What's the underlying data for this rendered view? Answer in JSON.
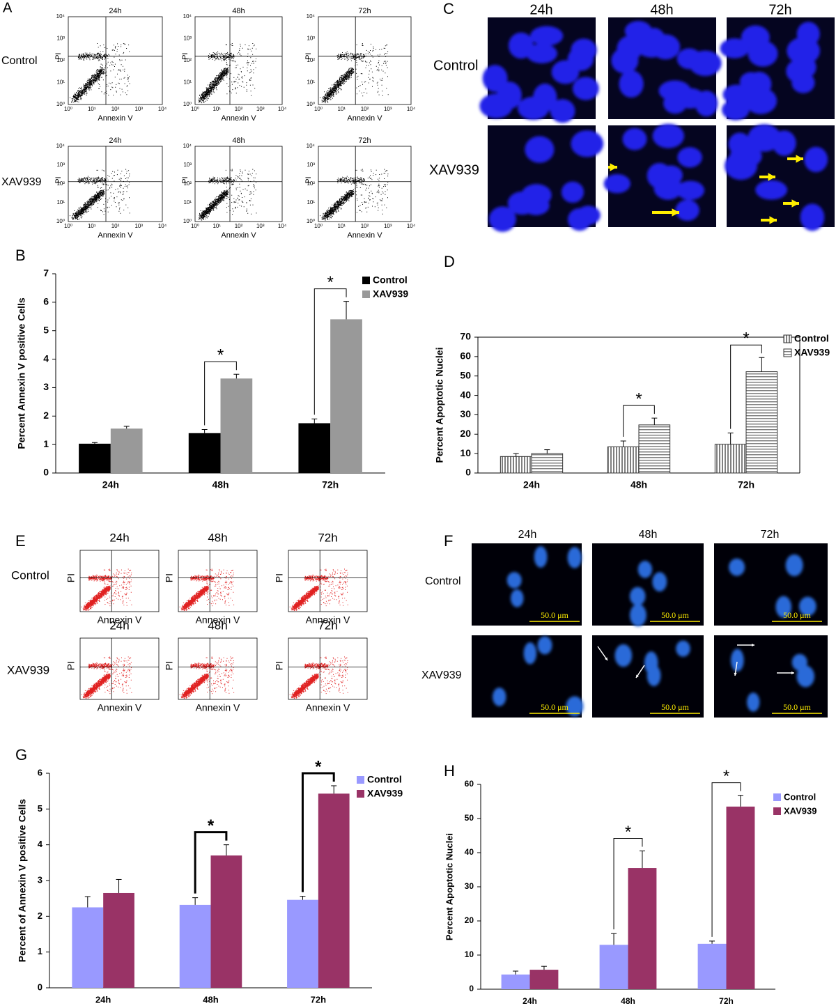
{
  "panel_a": {
    "label": "A",
    "columns": [
      "24h",
      "48h",
      "72h"
    ],
    "rows": [
      "Control",
      "XAV939"
    ],
    "x_label": "Annexin V",
    "y_label": "PI",
    "ticks": [
      "10⁰",
      "10¹",
      "10²",
      "10³",
      "10⁴"
    ]
  },
  "panel_c": {
    "label": "C",
    "columns": [
      "24h",
      "48h",
      "72h"
    ],
    "rows": [
      "Control",
      "XAV939"
    ]
  },
  "panel_e": {
    "label": "E",
    "columns": [
      "24h",
      "48h",
      "72h"
    ],
    "rows": [
      "Control",
      "XAV939"
    ],
    "x_label": "Annexin V",
    "y_label": "PI"
  },
  "panel_f": {
    "label": "F",
    "columns": [
      "24h",
      "48h",
      "72h"
    ],
    "rows": [
      "Control",
      "XAV939"
    ],
    "scale_bar": "50.0 μm"
  },
  "chart_data": [
    {
      "type": "bar",
      "panel_label": "B",
      "y_label": "Percent  Annexin V  positive  Cells",
      "categories": [
        "24h",
        "48h",
        "72h"
      ],
      "series": [
        {
          "name": "Control",
          "color": "#000000",
          "values": [
            1.03,
            1.4,
            1.75
          ],
          "errors": [
            0.04,
            0.13,
            0.15
          ]
        },
        {
          "name": "XAV939",
          "color": "#999999",
          "values": [
            1.56,
            3.32,
            5.4
          ],
          "errors": [
            0.08,
            0.15,
            0.63
          ]
        }
      ],
      "ylim": [
        0,
        7
      ],
      "yticks": [
        0,
        1,
        2,
        3,
        4,
        5,
        6,
        7
      ],
      "legend": "top-right",
      "annotations": [
        "*",
        "*"
      ]
    },
    {
      "type": "bar",
      "panel_label": "D",
      "y_label": "Percent Apoptotic Nuclei",
      "categories": [
        "24h",
        "48h",
        "72h"
      ],
      "series": [
        {
          "name": "Control",
          "color": "#808080",
          "pattern": "vertical",
          "values": [
            8.5,
            13.5,
            14.8
          ],
          "errors": [
            1.5,
            3.0,
            5.8
          ]
        },
        {
          "name": "XAV939",
          "color": "#808080",
          "pattern": "horizontal",
          "values": [
            10.0,
            24.8,
            52.2
          ],
          "errors": [
            2.0,
            3.5,
            7.3
          ]
        }
      ],
      "ylim": [
        0,
        70
      ],
      "yticks": [
        0,
        10,
        20,
        30,
        40,
        50,
        60,
        70
      ],
      "legend": "top-right",
      "annotations": [
        "*",
        "*"
      ]
    },
    {
      "type": "bar",
      "panel_label": "G",
      "y_label": "Percent of Annexin V positive Cells",
      "categories": [
        "24h",
        "48h",
        "72h"
      ],
      "series": [
        {
          "name": "Control",
          "color": "#9999ff",
          "values": [
            2.25,
            2.32,
            2.46
          ],
          "errors": [
            0.3,
            0.2,
            0.1
          ]
        },
        {
          "name": "XAV939",
          "color": "#993366",
          "values": [
            2.65,
            3.7,
            5.43
          ],
          "errors": [
            0.38,
            0.3,
            0.22
          ]
        }
      ],
      "ylim": [
        0,
        6
      ],
      "yticks": [
        0,
        1,
        2,
        3,
        4,
        5,
        6
      ],
      "legend": "top-right",
      "annotations": [
        "*",
        "*"
      ]
    },
    {
      "type": "bar",
      "panel_label": "H",
      "y_label": "Percent Apoptotic Nuclei",
      "categories": [
        "24h",
        "48h",
        "72h"
      ],
      "series": [
        {
          "name": "Control",
          "color": "#9999ff",
          "values": [
            4.3,
            13.0,
            13.3
          ],
          "errors": [
            1.0,
            3.3,
            0.8
          ]
        },
        {
          "name": "XAV939",
          "color": "#993366",
          "values": [
            5.7,
            35.5,
            53.5
          ],
          "errors": [
            1.0,
            5.0,
            3.3
          ]
        }
      ],
      "ylim": [
        0,
        60
      ],
      "yticks": [
        0,
        10,
        20,
        30,
        40,
        50,
        60
      ],
      "legend": "top-right",
      "annotations": [
        "*",
        "*"
      ]
    }
  ]
}
